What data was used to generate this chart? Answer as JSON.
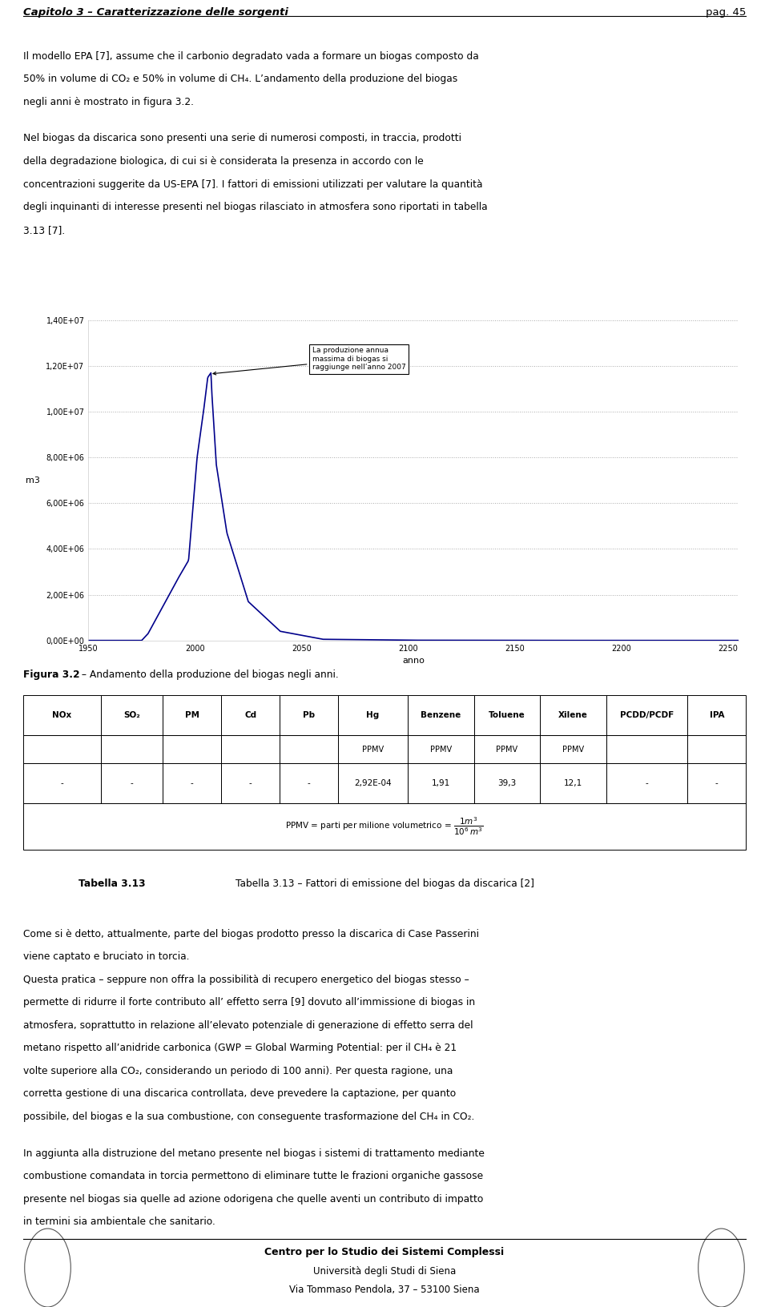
{
  "header_left": "Capitolo 3 – Caratterizzazione delle sorgenti",
  "header_right": "pag. 45",
  "fig_caption_bold": "Figura 3.2",
  "fig_caption_rest": " – Andamento della produzione del biogas negli anni.",
  "annotation": "La produzione annua\nmassima di biogas si\nraggiunge nell’anno 2007",
  "xlabel": "anno",
  "ylabel": "m3",
  "ytick_labels": [
    "0,00E+00",
    "2,00E+06",
    "4,00E+06",
    "6,00E+06",
    "8,00E+06",
    "1,00E+07",
    "1,20E+07",
    "1,40E+07"
  ],
  "ytick_vals": [
    0,
    2000000,
    4000000,
    6000000,
    8000000,
    10000000,
    12000000,
    14000000
  ],
  "xtick_vals": [
    1950,
    2000,
    2050,
    2100,
    2150,
    2200,
    2250
  ],
  "table_caption_bold": "Tabella 3.13",
  "table_caption_rest": " – Fattori di emissione del biogas da discarica [2]",
  "footer_bold": "Centro per lo Studio dei Sistemi Complessi",
  "footer1": "Università degli Studi di Siena",
  "footer2": "Via Tommaso Pendola, 37 – 53100 Siena",
  "line_color": "#00008B",
  "background": "#ffffff",
  "col_headers": [
    "NOx",
    "SO₂",
    "PM",
    "Cd",
    "Pb",
    "Hg",
    "Benzene",
    "Toluene",
    "Xilene",
    "PCDD/PCDF",
    "IPA"
  ],
  "col_widths_raw": [
    0.1,
    0.08,
    0.075,
    0.075,
    0.075,
    0.09,
    0.085,
    0.085,
    0.085,
    0.105,
    0.075
  ],
  "ppmv_cols": [
    "Hg",
    "Benzene",
    "Toluene",
    "Xilene"
  ],
  "data_row": [
    "-",
    "-",
    "-",
    "-",
    "-",
    "2,92E-04",
    "1,91",
    "39,3",
    "12,1",
    "-",
    "-"
  ]
}
